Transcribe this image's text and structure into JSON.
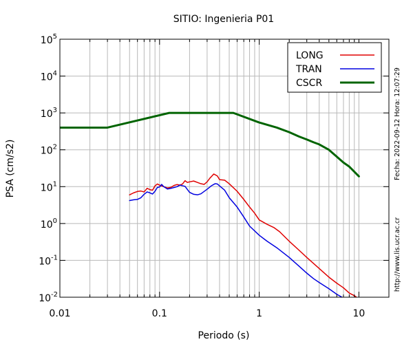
{
  "chart_data": {
    "type": "line",
    "title": "SITIO: Ingenieria P01",
    "xlabel": "Periodo (s)",
    "ylabel": "PSA (cm/s2)",
    "x_scale": "log",
    "y_scale": "log",
    "xlim": [
      0.01,
      20
    ],
    "ylim": [
      0.01,
      100000
    ],
    "x_ticks": [
      {
        "value": 0.01,
        "label": "0.01"
      },
      {
        "value": 0.1,
        "label": "0.1"
      },
      {
        "value": 1,
        "label": "1"
      },
      {
        "value": 10,
        "label": "10"
      }
    ],
    "y_ticks": [
      {
        "value": 0.01,
        "base": "10",
        "exp": "-2"
      },
      {
        "value": 0.1,
        "base": "10",
        "exp": "-1"
      },
      {
        "value": 1,
        "base": "10",
        "exp": "0"
      },
      {
        "value": 10,
        "base": "10",
        "exp": "1"
      },
      {
        "value": 100,
        "base": "10",
        "exp": "2"
      },
      {
        "value": 1000,
        "base": "10",
        "exp": "3"
      },
      {
        "value": 10000,
        "base": "10",
        "exp": "4"
      },
      {
        "value": 100000,
        "base": "10",
        "exp": "5"
      }
    ],
    "grid": true,
    "legend_position": "top-right",
    "series": [
      {
        "name": "LONG",
        "color": "#e00000",
        "points": [
          [
            0.05,
            6.0
          ],
          [
            0.055,
            6.8
          ],
          [
            0.06,
            7.4
          ],
          [
            0.065,
            7.6
          ],
          [
            0.07,
            7.2
          ],
          [
            0.075,
            9.0
          ],
          [
            0.08,
            8.3
          ],
          [
            0.085,
            8.0
          ],
          [
            0.09,
            10.5
          ],
          [
            0.095,
            11.8
          ],
          [
            0.1,
            11.0
          ],
          [
            0.11,
            10.0
          ],
          [
            0.12,
            9.2
          ],
          [
            0.13,
            9.6
          ],
          [
            0.14,
            10.8
          ],
          [
            0.15,
            11.4
          ],
          [
            0.16,
            11.0
          ],
          [
            0.17,
            11.8
          ],
          [
            0.18,
            14.5
          ],
          [
            0.19,
            13.0
          ],
          [
            0.2,
            13.5
          ],
          [
            0.22,
            14.2
          ],
          [
            0.24,
            13.0
          ],
          [
            0.26,
            12.0
          ],
          [
            0.28,
            11.5
          ],
          [
            0.3,
            13.5
          ],
          [
            0.32,
            17.0
          ],
          [
            0.35,
            22.0
          ],
          [
            0.38,
            19.5
          ],
          [
            0.4,
            15.5
          ],
          [
            0.45,
            15.0
          ],
          [
            0.5,
            12.0
          ],
          [
            0.6,
            7.5
          ],
          [
            0.7,
            4.5
          ],
          [
            0.8,
            2.8
          ],
          [
            0.9,
            1.9
          ],
          [
            1.0,
            1.25
          ],
          [
            1.2,
            0.95
          ],
          [
            1.4,
            0.78
          ],
          [
            1.6,
            0.6
          ],
          [
            2.0,
            0.33
          ],
          [
            2.5,
            0.19
          ],
          [
            3.0,
            0.12
          ],
          [
            4.0,
            0.06
          ],
          [
            5.0,
            0.035
          ],
          [
            6.0,
            0.024
          ],
          [
            7.0,
            0.018
          ],
          [
            8.0,
            0.013
          ],
          [
            9.0,
            0.011
          ],
          [
            10.0,
            0.009
          ]
        ]
      },
      {
        "name": "TRAN",
        "color": "#0000e0",
        "points": [
          [
            0.05,
            4.2
          ],
          [
            0.055,
            4.4
          ],
          [
            0.06,
            4.5
          ],
          [
            0.065,
            5.0
          ],
          [
            0.07,
            6.2
          ],
          [
            0.075,
            7.2
          ],
          [
            0.08,
            6.8
          ],
          [
            0.085,
            6.3
          ],
          [
            0.09,
            7.5
          ],
          [
            0.095,
            9.5
          ],
          [
            0.1,
            9.8
          ],
          [
            0.105,
            11.5
          ],
          [
            0.11,
            10.0
          ],
          [
            0.12,
            8.6
          ],
          [
            0.13,
            9.0
          ],
          [
            0.14,
            9.5
          ],
          [
            0.15,
            10.0
          ],
          [
            0.16,
            11.0
          ],
          [
            0.17,
            10.6
          ],
          [
            0.18,
            10.2
          ],
          [
            0.2,
            7.0
          ],
          [
            0.22,
            6.2
          ],
          [
            0.24,
            6.0
          ],
          [
            0.26,
            6.4
          ],
          [
            0.3,
            8.5
          ],
          [
            0.33,
            10.5
          ],
          [
            0.36,
            12.0
          ],
          [
            0.38,
            11.8
          ],
          [
            0.4,
            10.5
          ],
          [
            0.45,
            8.0
          ],
          [
            0.5,
            5.0
          ],
          [
            0.6,
            2.8
          ],
          [
            0.7,
            1.5
          ],
          [
            0.8,
            0.85
          ],
          [
            1.0,
            0.48
          ],
          [
            1.2,
            0.33
          ],
          [
            1.5,
            0.22
          ],
          [
            2.0,
            0.12
          ],
          [
            2.5,
            0.07
          ],
          [
            3.0,
            0.045
          ],
          [
            3.5,
            0.032
          ],
          [
            4.0,
            0.025
          ],
          [
            5.0,
            0.017
          ],
          [
            6.0,
            0.012
          ],
          [
            7.0,
            0.0095
          ]
        ]
      },
      {
        "name": "CSCR",
        "color": "#006400",
        "points": [
          [
            0.01,
            400
          ],
          [
            0.03,
            400
          ],
          [
            0.125,
            1000
          ],
          [
            0.55,
            1000
          ],
          [
            1.0,
            550
          ],
          [
            1.5,
            400
          ],
          [
            2.0,
            300
          ],
          [
            2.5,
            230
          ],
          [
            3.0,
            190
          ],
          [
            3.5,
            160
          ],
          [
            4.0,
            140
          ],
          [
            5.0,
            100
          ],
          [
            6.0,
            65
          ],
          [
            7.0,
            45
          ],
          [
            8.0,
            35
          ],
          [
            10.0,
            19
          ]
        ]
      }
    ]
  },
  "side_text": {
    "timestamp": "Fecha: 2022-09-12 Hora: 12:07:29",
    "url": "http://www.lis.ucr.ac.cr"
  }
}
